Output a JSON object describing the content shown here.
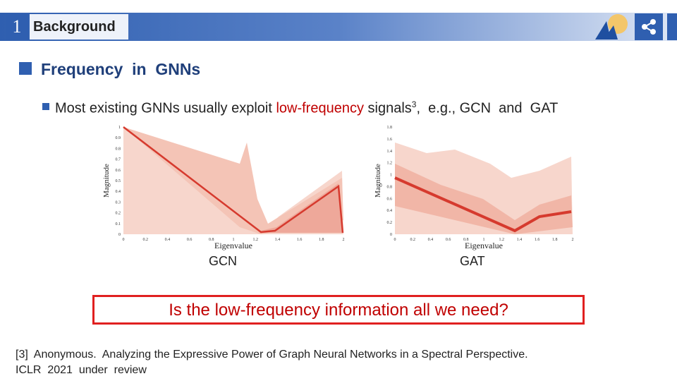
{
  "header": {
    "number": "1",
    "title": "Background"
  },
  "section": {
    "title": "Frequency  in  GNNs"
  },
  "bullet": {
    "text_before": "Most existing GNNs usually exploit ",
    "highlight": "low-frequency",
    "text_after": " signals",
    "superscript": "3",
    "text_end": ",  e.g., GCN  and  GAT"
  },
  "figures": [
    {
      "caption": "GCN",
      "x_label": "Eigenvalue",
      "y_label": "Magnitude",
      "xticks": [
        0,
        0.2,
        0.4,
        0.6,
        0.8,
        1,
        1.2,
        1.4,
        1.6,
        1.8,
        2
      ],
      "yticks": [
        0,
        0.1,
        0.2,
        0.3,
        0.4,
        0.5,
        0.6,
        0.7,
        0.8,
        0.9,
        1
      ]
    },
    {
      "caption": "GAT",
      "x_label": "Eigenvalue",
      "y_label": "Magnitude",
      "xticks": [
        0,
        0.2,
        0.4,
        0.6,
        0.8,
        1,
        1.2,
        1.4,
        1.6,
        1.8,
        2
      ],
      "yticks": [
        0,
        0.2,
        0.4,
        0.6,
        0.8,
        1,
        1.2,
        1.4,
        1.6,
        1.8
      ]
    }
  ],
  "question": "Is the low-frequency information all we need?",
  "reference": {
    "line1": "[3]  Anonymous.  Analyzing the Expressive Power of Graph Neural Networks in a Spectral Perspective.",
    "line2": "ICLR  2021  under  review"
  }
}
